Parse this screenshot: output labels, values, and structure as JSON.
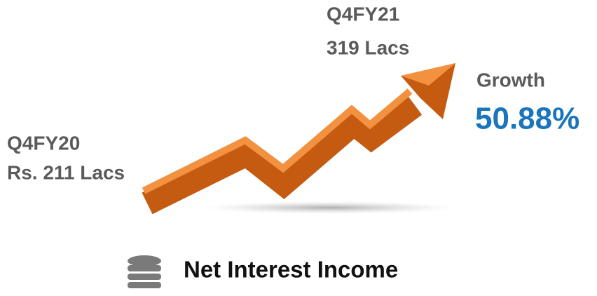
{
  "end_period": {
    "label": "Q4FY21",
    "value": "319 Lacs"
  },
  "start_period": {
    "label": "Q4FY20",
    "value": "Rs. 211 Lacs"
  },
  "growth": {
    "label": "Growth",
    "value": "50.88%"
  },
  "metric": "Net Interest Income"
}
